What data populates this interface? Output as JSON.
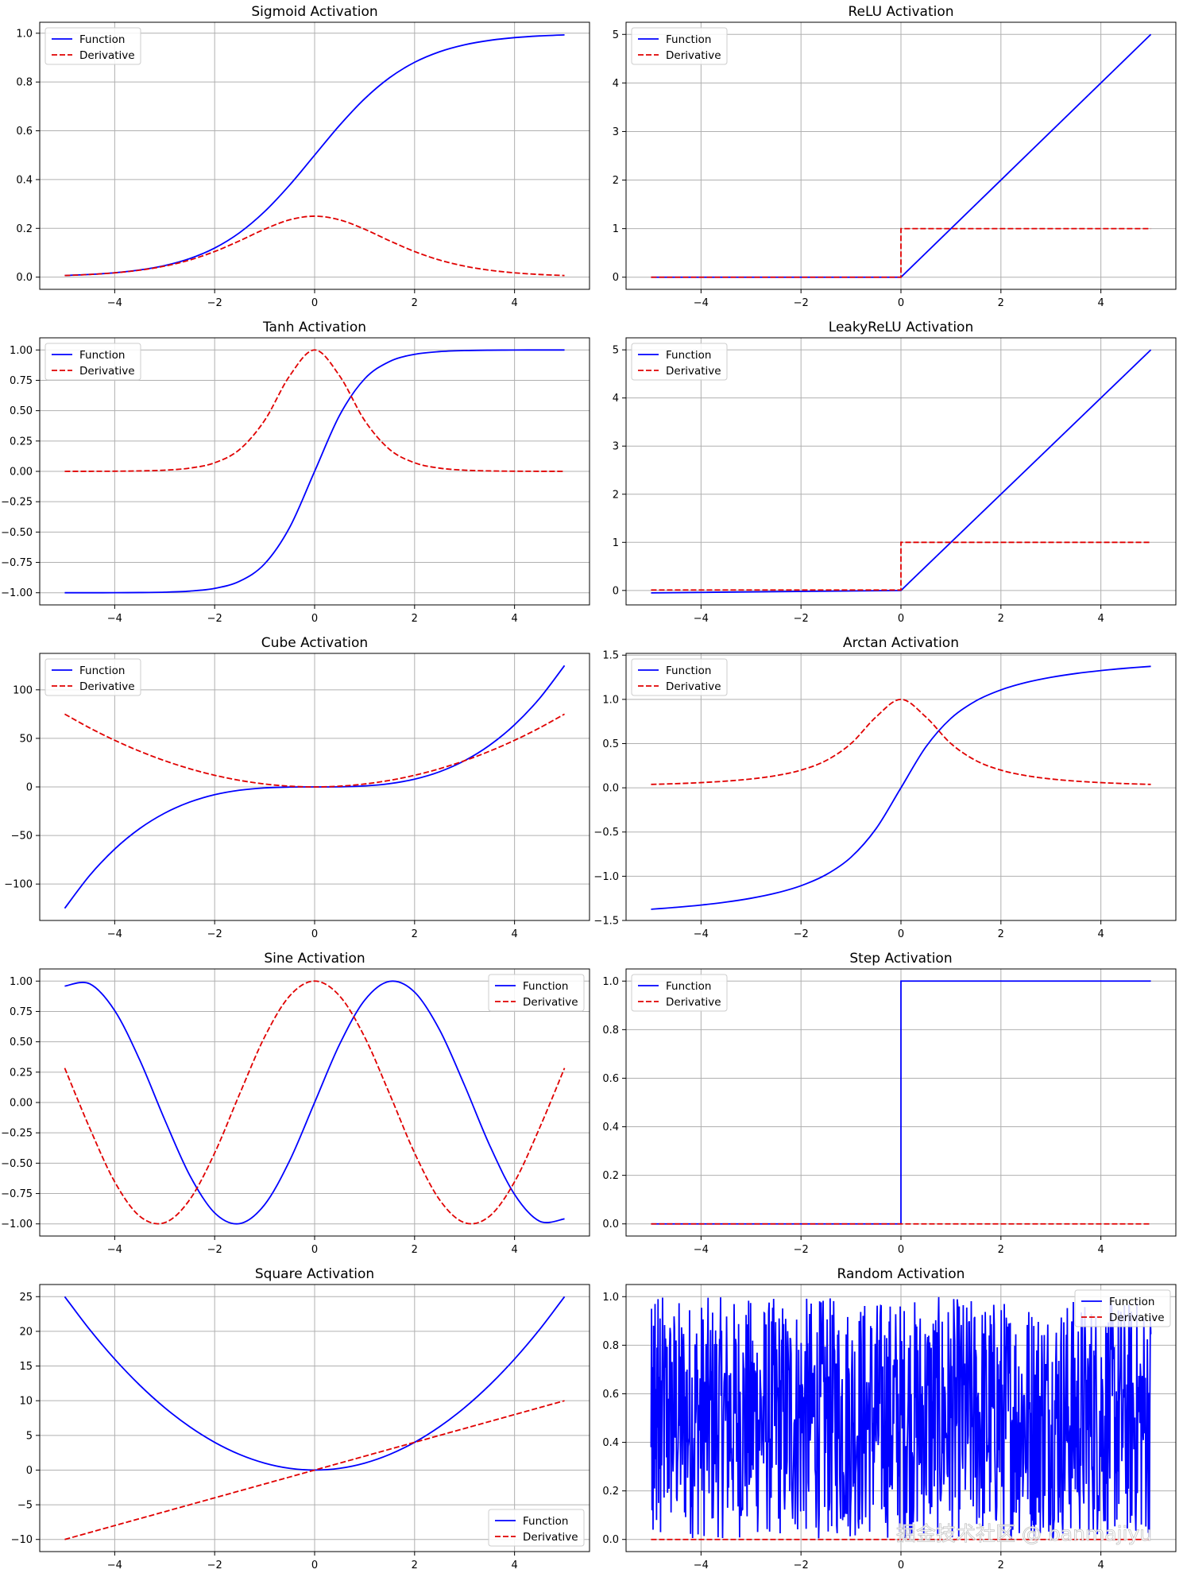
{
  "watermark": "掘金技术社区 @ banmajiyu",
  "legend_labels": {
    "function": "Function",
    "derivative": "Derivative"
  },
  "colors": {
    "function": "#0000ff",
    "derivative": "#e00000",
    "grid": "#b0b0b0"
  },
  "chart_data": [
    {
      "id": "sigmoid",
      "type": "line",
      "title": "Sigmoid Activation",
      "xlim": [
        -5.5,
        5.5
      ],
      "ylim": [
        -0.05,
        1.045
      ],
      "xticks": [
        -4,
        -2,
        0,
        2,
        4
      ],
      "yticks": [
        0.0,
        0.2,
        0.4,
        0.6,
        0.8,
        1.0
      ],
      "ytick_labels": [
        "0.0",
        "0.2",
        "0.4",
        "0.6",
        "0.8",
        "1.0"
      ],
      "grid": true,
      "legend": "upper-left",
      "x": [
        -5,
        -4.5,
        -4,
        -3.5,
        -3,
        -2.5,
        -2,
        -1.5,
        -1,
        -0.5,
        0,
        0.5,
        1,
        1.5,
        2,
        2.5,
        3,
        3.5,
        4,
        4.5,
        5
      ],
      "series": [
        {
          "name": "Function",
          "style": "solid",
          "values": [
            0.0067,
            0.011,
            0.018,
            0.0293,
            0.0474,
            0.0759,
            0.1192,
            0.1824,
            0.2689,
            0.3775,
            0.5,
            0.6225,
            0.7311,
            0.8176,
            0.8808,
            0.9241,
            0.9526,
            0.9707,
            0.982,
            0.989,
            0.9933
          ]
        },
        {
          "name": "Derivative",
          "style": "dashed",
          "values": [
            0.0066,
            0.0109,
            0.0177,
            0.0285,
            0.0452,
            0.0701,
            0.105,
            0.1491,
            0.1966,
            0.235,
            0.25,
            0.235,
            0.1966,
            0.1491,
            0.105,
            0.0701,
            0.0452,
            0.0285,
            0.0177,
            0.0109,
            0.0066
          ]
        }
      ]
    },
    {
      "id": "relu",
      "type": "line",
      "title": "ReLU Activation",
      "xlim": [
        -5.5,
        5.5
      ],
      "ylim": [
        -0.25,
        5.25
      ],
      "xticks": [
        -4,
        -2,
        0,
        2,
        4
      ],
      "yticks": [
        0,
        1,
        2,
        3,
        4,
        5
      ],
      "ytick_labels": [
        "0",
        "1",
        "2",
        "3",
        "4",
        "5"
      ],
      "grid": true,
      "legend": "upper-left",
      "series": [
        {
          "name": "Function",
          "style": "solid",
          "x": [
            -5,
            0,
            5
          ],
          "values": [
            0,
            0,
            5
          ]
        },
        {
          "name": "Derivative",
          "style": "dashed",
          "x": [
            -5,
            0,
            0,
            5
          ],
          "values": [
            0,
            0,
            1,
            1
          ]
        }
      ]
    },
    {
      "id": "tanh",
      "type": "line",
      "title": "Tanh Activation",
      "xlim": [
        -5.5,
        5.5
      ],
      "ylim": [
        -1.1,
        1.1
      ],
      "xticks": [
        -4,
        -2,
        0,
        2,
        4
      ],
      "yticks": [
        -1.0,
        -0.75,
        -0.5,
        -0.25,
        0.0,
        0.25,
        0.5,
        0.75,
        1.0
      ],
      "ytick_labels": [
        "−1.00",
        "−0.75",
        "−0.50",
        "−0.25",
        "0.00",
        "0.25",
        "0.50",
        "0.75",
        "1.00"
      ],
      "grid": true,
      "legend": "upper-left",
      "x": [
        -5,
        -4.5,
        -4,
        -3.5,
        -3,
        -2.5,
        -2,
        -1.5,
        -1,
        -0.5,
        0,
        0.5,
        1,
        1.5,
        2,
        2.5,
        3,
        3.5,
        4,
        4.5,
        5
      ],
      "series": [
        {
          "name": "Function",
          "style": "solid",
          "values": [
            -0.9999,
            -0.9998,
            -0.9993,
            -0.9982,
            -0.9951,
            -0.9866,
            -0.964,
            -0.9051,
            -0.7616,
            -0.4621,
            0,
            0.4621,
            0.7616,
            0.9051,
            0.964,
            0.9866,
            0.9951,
            0.9982,
            0.9993,
            0.9998,
            0.9999
          ]
        },
        {
          "name": "Derivative",
          "style": "dashed",
          "values": [
            0.0002,
            0.0005,
            0.0013,
            0.0036,
            0.0099,
            0.0266,
            0.0707,
            0.1807,
            0.42,
            0.7864,
            1.0,
            0.7864,
            0.42,
            0.1807,
            0.0707,
            0.0266,
            0.0099,
            0.0036,
            0.0013,
            0.0005,
            0.0002
          ]
        }
      ]
    },
    {
      "id": "leakyrelu",
      "type": "line",
      "title": "LeakyReLU Activation",
      "xlim": [
        -5.5,
        5.5
      ],
      "ylim": [
        -0.3,
        5.25
      ],
      "xticks": [
        -4,
        -2,
        0,
        2,
        4
      ],
      "yticks": [
        0,
        1,
        2,
        3,
        4,
        5
      ],
      "ytick_labels": [
        "0",
        "1",
        "2",
        "3",
        "4",
        "5"
      ],
      "grid": true,
      "legend": "upper-left",
      "series": [
        {
          "name": "Function",
          "style": "solid",
          "x": [
            -5,
            0,
            5
          ],
          "values": [
            -0.05,
            0,
            5
          ]
        },
        {
          "name": "Derivative",
          "style": "dashed",
          "x": [
            -5,
            0,
            0,
            5
          ],
          "values": [
            0.01,
            0.01,
            1,
            1
          ]
        }
      ]
    },
    {
      "id": "cube",
      "type": "line",
      "title": "Cube Activation",
      "xlim": [
        -5.5,
        5.5
      ],
      "ylim": [
        -137.5,
        137.5
      ],
      "xticks": [
        -4,
        -2,
        0,
        2,
        4
      ],
      "yticks": [
        -100,
        -50,
        0,
        50,
        100
      ],
      "ytick_labels": [
        "−100",
        "−50",
        "0",
        "50",
        "100"
      ],
      "grid": true,
      "legend": "upper-left",
      "x": [
        -5,
        -4.5,
        -4,
        -3.5,
        -3,
        -2.5,
        -2,
        -1.5,
        -1,
        -0.5,
        0,
        0.5,
        1,
        1.5,
        2,
        2.5,
        3,
        3.5,
        4,
        4.5,
        5
      ],
      "series": [
        {
          "name": "Function",
          "style": "solid",
          "values": [
            -125,
            -91.125,
            -64,
            -42.875,
            -27,
            -15.625,
            -8,
            -3.375,
            -1,
            -0.125,
            0,
            0.125,
            1,
            3.375,
            8,
            15.625,
            27,
            42.875,
            64,
            91.125,
            125
          ]
        },
        {
          "name": "Derivative",
          "style": "dashed",
          "values": [
            75,
            60.75,
            48,
            36.75,
            27,
            18.75,
            12,
            6.75,
            3,
            0.75,
            0,
            0.75,
            3,
            6.75,
            12,
            18.75,
            27,
            36.75,
            48,
            60.75,
            75
          ]
        }
      ]
    },
    {
      "id": "arctan",
      "type": "line",
      "title": "Arctan Activation",
      "xlim": [
        -5.5,
        5.5
      ],
      "ylim": [
        -1.5,
        1.52
      ],
      "xticks": [
        -4,
        -2,
        0,
        2,
        4
      ],
      "yticks": [
        -1.5,
        -1.0,
        -0.5,
        0.0,
        0.5,
        1.0,
        1.5
      ],
      "ytick_labels": [
        "−1.5",
        "−1.0",
        "−0.5",
        "0.0",
        "0.5",
        "1.0",
        "1.5"
      ],
      "grid": true,
      "legend": "upper-left",
      "x": [
        -5,
        -4.5,
        -4,
        -3.5,
        -3,
        -2.5,
        -2,
        -1.5,
        -1,
        -0.5,
        0,
        0.5,
        1,
        1.5,
        2,
        2.5,
        3,
        3.5,
        4,
        4.5,
        5
      ],
      "series": [
        {
          "name": "Function",
          "style": "solid",
          "values": [
            -1.3734,
            -1.3521,
            -1.3258,
            -1.2925,
            -1.249,
            -1.1903,
            -1.1071,
            -0.9828,
            -0.7854,
            -0.4636,
            0,
            0.4636,
            0.7854,
            0.9828,
            1.1071,
            1.1903,
            1.249,
            1.2925,
            1.3258,
            1.3521,
            1.3734
          ]
        },
        {
          "name": "Derivative",
          "style": "dashed",
          "values": [
            0.0385,
            0.0471,
            0.0588,
            0.0755,
            0.1,
            0.1379,
            0.2,
            0.3077,
            0.5,
            0.8,
            1.0,
            0.8,
            0.5,
            0.3077,
            0.2,
            0.1379,
            0.1,
            0.0755,
            0.0588,
            0.0471,
            0.0385
          ]
        }
      ]
    },
    {
      "id": "sine",
      "type": "line",
      "title": "Sine Activation",
      "xlim": [
        -5.5,
        5.5
      ],
      "ylim": [
        -1.1,
        1.1
      ],
      "xticks": [
        -4,
        -2,
        0,
        2,
        4
      ],
      "yticks": [
        -1.0,
        -0.75,
        -0.5,
        -0.25,
        0.0,
        0.25,
        0.5,
        0.75,
        1.0
      ],
      "ytick_labels": [
        "−1.00",
        "−0.75",
        "−0.50",
        "−0.25",
        "0.00",
        "0.25",
        "0.50",
        "0.75",
        "1.00"
      ],
      "grid": true,
      "legend": "upper-right",
      "x": [
        -5,
        -4.5,
        -4,
        -3.5,
        -3,
        -2.5,
        -2,
        -1.5,
        -1,
        -0.5,
        0,
        0.5,
        1,
        1.5,
        2,
        2.5,
        3,
        3.5,
        4,
        4.5,
        5
      ],
      "series": [
        {
          "name": "Function",
          "style": "solid",
          "values": [
            0.9589,
            0.9775,
            0.7568,
            0.3508,
            -0.1411,
            -0.5985,
            -0.9093,
            -0.9975,
            -0.8415,
            -0.4794,
            0,
            0.4794,
            0.8415,
            0.9975,
            0.9093,
            0.5985,
            0.1411,
            -0.3508,
            -0.7568,
            -0.9775,
            -0.9589
          ]
        },
        {
          "name": "Derivative",
          "style": "dashed",
          "values": [
            0.2837,
            -0.2108,
            -0.6536,
            -0.9365,
            -0.99,
            -0.8011,
            -0.4161,
            0.0707,
            0.5403,
            0.8776,
            1.0,
            0.8776,
            0.5403,
            0.0707,
            -0.4161,
            -0.8011,
            -0.99,
            -0.9365,
            -0.6536,
            -0.2108,
            0.2837
          ]
        }
      ]
    },
    {
      "id": "step",
      "type": "line",
      "title": "Step Activation",
      "xlim": [
        -5.5,
        5.5
      ],
      "ylim": [
        -0.05,
        1.05
      ],
      "xticks": [
        -4,
        -2,
        0,
        2,
        4
      ],
      "yticks": [
        0.0,
        0.2,
        0.4,
        0.6,
        0.8,
        1.0
      ],
      "ytick_labels": [
        "0.0",
        "0.2",
        "0.4",
        "0.6",
        "0.8",
        "1.0"
      ],
      "grid": true,
      "legend": "upper-left",
      "series": [
        {
          "name": "Function",
          "style": "solid",
          "x": [
            -5,
            0,
            0,
            5
          ],
          "values": [
            0,
            0,
            1,
            1
          ]
        },
        {
          "name": "Derivative",
          "style": "dashed",
          "x": [
            -5,
            5
          ],
          "values": [
            0,
            0
          ]
        }
      ]
    },
    {
      "id": "square",
      "type": "line",
      "title": "Square Activation",
      "xlim": [
        -5.5,
        5.5
      ],
      "ylim": [
        -11.75,
        26.75
      ],
      "xticks": [
        -4,
        -2,
        0,
        2,
        4
      ],
      "yticks": [
        -10,
        -5,
        0,
        5,
        10,
        15,
        20,
        25
      ],
      "ytick_labels": [
        "−10",
        "−5",
        "0",
        "5",
        "10",
        "15",
        "20",
        "25"
      ],
      "grid": true,
      "legend": "lower-right",
      "x": [
        -5,
        -4.5,
        -4,
        -3.5,
        -3,
        -2.5,
        -2,
        -1.5,
        -1,
        -0.5,
        0,
        0.5,
        1,
        1.5,
        2,
        2.5,
        3,
        3.5,
        4,
        4.5,
        5
      ],
      "series": [
        {
          "name": "Function",
          "style": "solid",
          "values": [
            25,
            20.25,
            16,
            12.25,
            9,
            6.25,
            4,
            2.25,
            1,
            0.25,
            0,
            0.25,
            1,
            2.25,
            4,
            6.25,
            9,
            12.25,
            16,
            20.25,
            25
          ]
        },
        {
          "name": "Derivative",
          "style": "dashed",
          "values": [
            -10,
            -9,
            -8,
            -7,
            -6,
            -5,
            -4,
            -3,
            -2,
            -1,
            0,
            1,
            2,
            3,
            4,
            5,
            6,
            7,
            8,
            9,
            10
          ]
        }
      ]
    },
    {
      "id": "random",
      "type": "line",
      "title": "Random Activation",
      "xlim": [
        -5.5,
        5.5
      ],
      "ylim": [
        -0.05,
        1.05
      ],
      "xticks": [
        -4,
        -2,
        0,
        2,
        4
      ],
      "yticks": [
        0.0,
        0.2,
        0.4,
        0.6,
        0.8,
        1.0
      ],
      "ytick_labels": [
        "0.0",
        "0.2",
        "0.4",
        "0.6",
        "0.8",
        "1.0"
      ],
      "grid": true,
      "legend": "upper-right",
      "note_random": {
        "x_start": -5,
        "x_end": 5,
        "n_points": 1000,
        "value_range": [
          0,
          1
        ]
      },
      "series": [
        {
          "name": "Function",
          "style": "solid",
          "random": true,
          "values": [
            0.38,
            0.95,
            0.12,
            0.71,
            0.04,
            0.88,
            0.55,
            0.21,
            0.97,
            0.33,
            0.62,
            0.08,
            0.79,
            0.46,
            0.99,
            0.15,
            0.67,
            0.29,
            0.91,
            0.03
          ]
        },
        {
          "name": "Derivative",
          "style": "dashed",
          "x": [
            -5,
            5
          ],
          "values": [
            0,
            0
          ]
        }
      ]
    }
  ]
}
